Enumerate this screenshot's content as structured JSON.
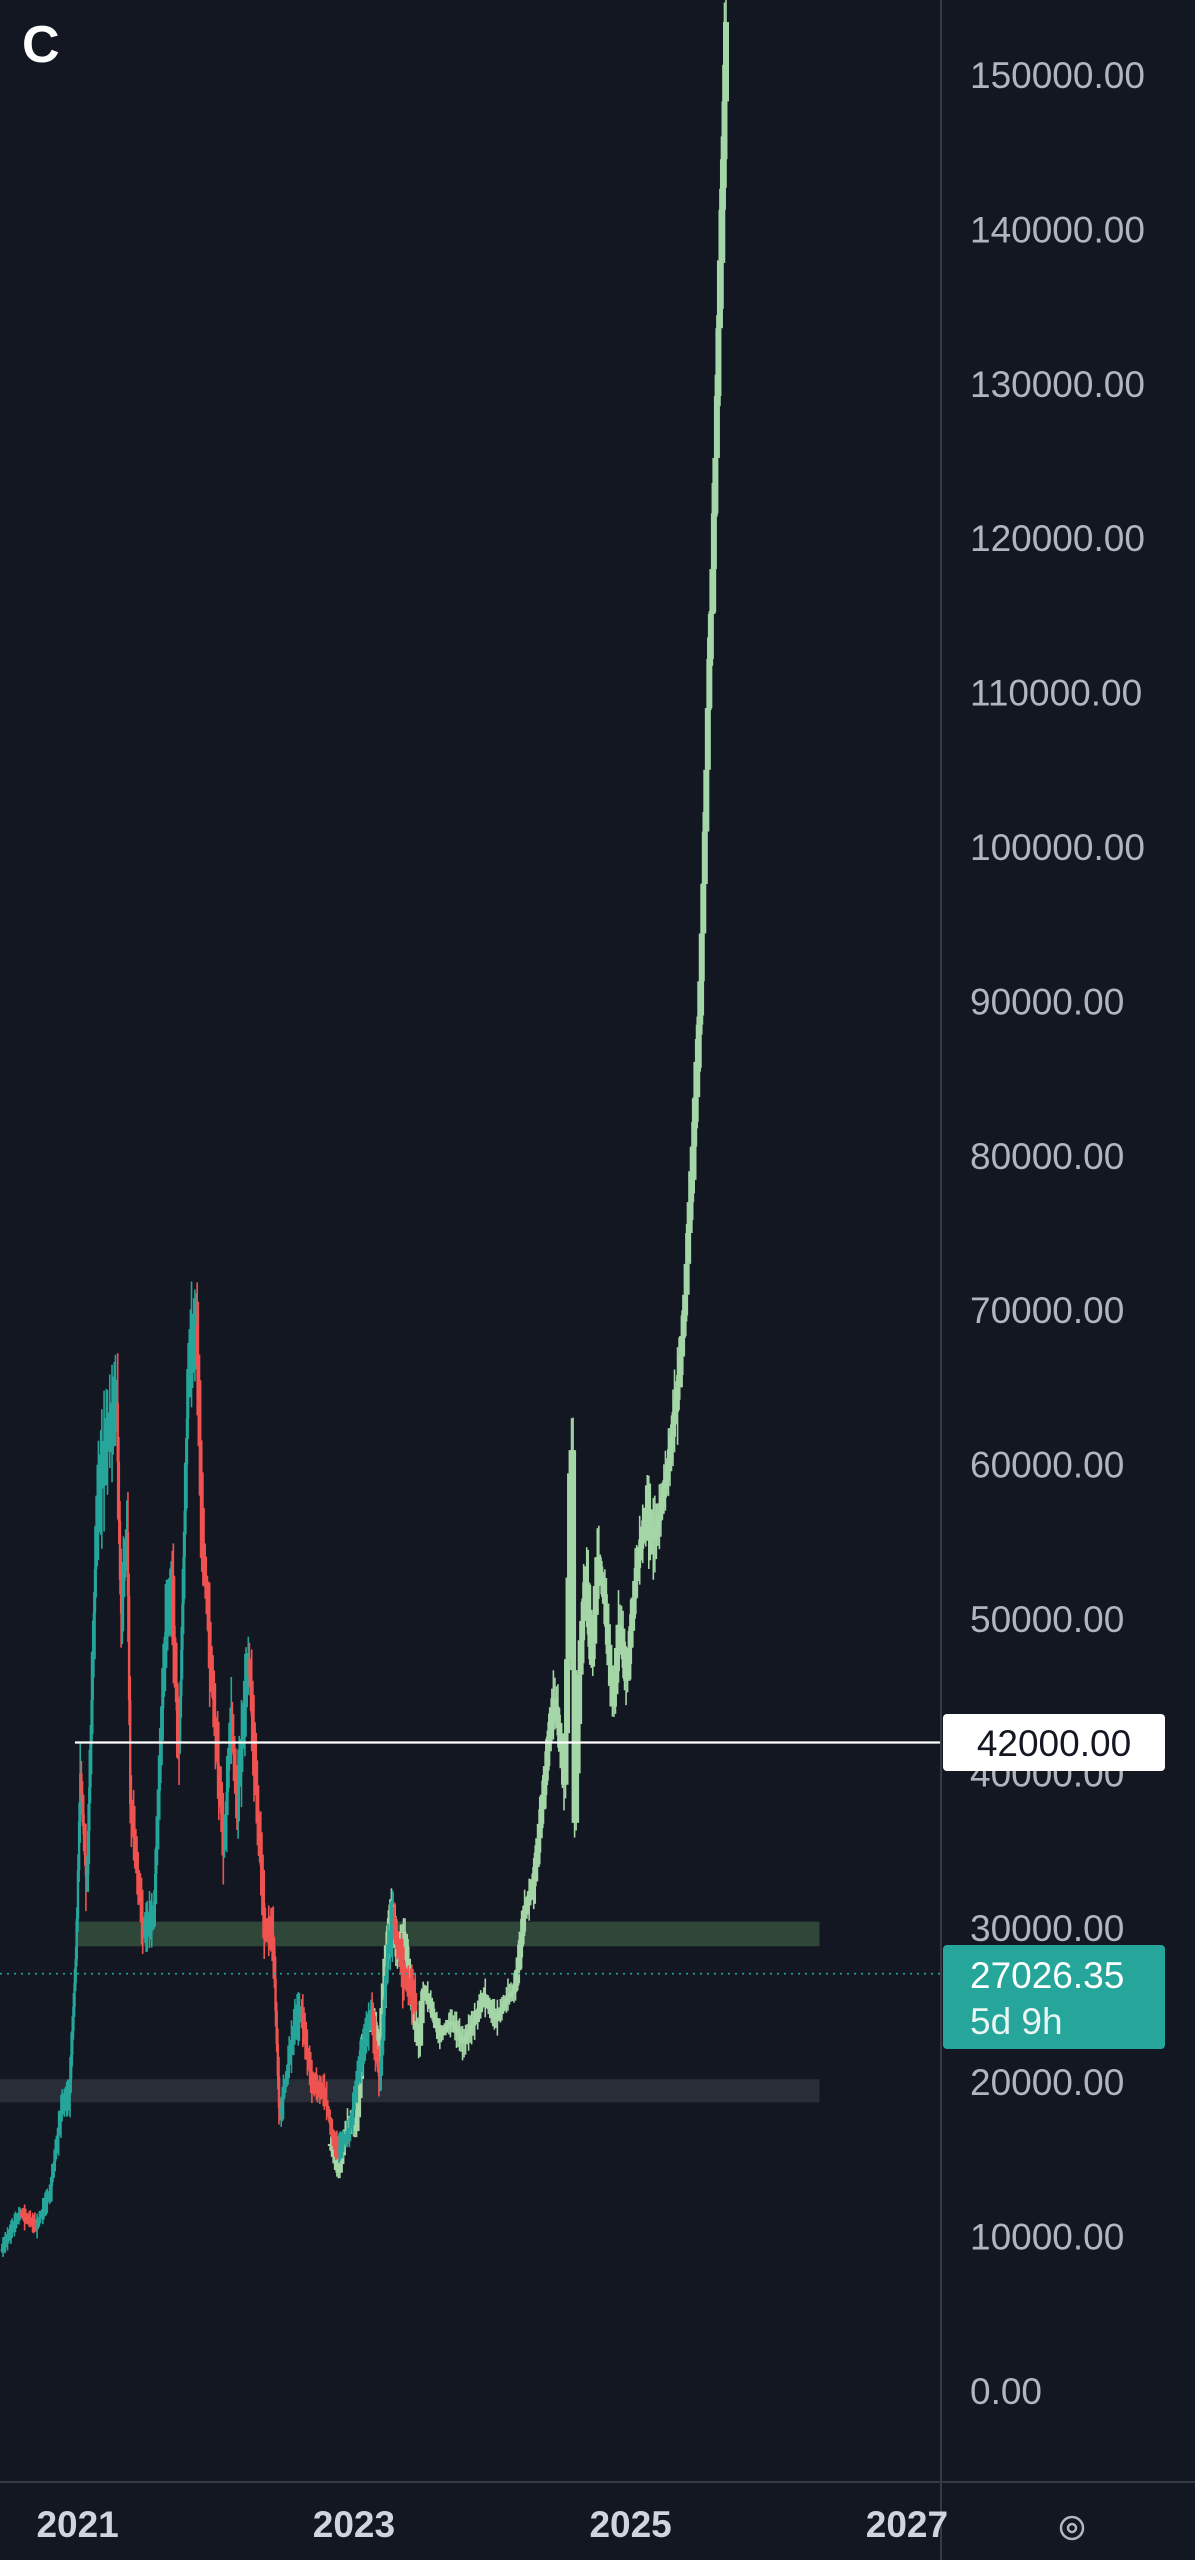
{
  "brand": {
    "logo_letter": "C"
  },
  "colors": {
    "background": "#131722",
    "axis_text": "#b2b5be",
    "candle_up": "#26a69a",
    "candle_down": "#ef5350",
    "projection": "#a5d6a7",
    "zone_resistance": "#2f4a3a",
    "zone_support": "#2a2e39",
    "level_line": "#ffffff",
    "price_badge": "#26a69a"
  },
  "icons": {
    "settings": "gear-icon"
  },
  "chart_data": {
    "type": "candlestick",
    "ylim": [
      -1000,
      156000
    ],
    "xlim": [
      "2020-06-10",
      "2027-04-01"
    ],
    "y_ticks": [
      "150000.00",
      "140000.00",
      "130000.00",
      "120000.00",
      "110000.00",
      "100000.00",
      "90000.00",
      "80000.00",
      "70000.00",
      "60000.00",
      "50000.00",
      "40000.00",
      "30000.00",
      "20000.00",
      "10000.00",
      "0.00"
    ],
    "x_ticks": [
      {
        "label": "2021",
        "date": "2021-01-01"
      },
      {
        "label": "2023",
        "date": "2023-01-01"
      },
      {
        "label": "2025",
        "date": "2025-01-01"
      },
      {
        "label": "2027",
        "date": "2027-01-01"
      }
    ],
    "horizontal_level": {
      "price": 42000,
      "label": "42000.00",
      "from_date": "2020-12-25"
    },
    "current_price": {
      "price": 27026.35,
      "label": "27026.35",
      "countdown": "5d 9h"
    },
    "zones": [
      {
        "name": "resistance",
        "from_date": "2020-12-25",
        "to_date": "2026-05-15",
        "low": 28800,
        "high": 30400
      },
      {
        "name": "support",
        "from_date": "2020-06-10",
        "to_date": "2026-05-15",
        "low": 18700,
        "high": 20200
      }
    ],
    "series": [
      {
        "name": "historical",
        "points": [
          [
            "2020-06-15",
            9200
          ],
          [
            "2020-08-01",
            11500
          ],
          [
            "2020-09-15",
            10700
          ],
          [
            "2020-10-20",
            12900
          ],
          [
            "2020-11-20",
            18500
          ],
          [
            "2020-12-10",
            19200
          ],
          [
            "2020-12-28",
            28500
          ],
          [
            "2021-01-08",
            40000
          ],
          [
            "2021-01-25",
            32500
          ],
          [
            "2021-02-20",
            57000
          ],
          [
            "2021-03-13",
            61000
          ],
          [
            "2021-04-14",
            64000
          ],
          [
            "2021-04-25",
            50000
          ],
          [
            "2021-05-12",
            56000
          ],
          [
            "2021-05-20",
            38000
          ],
          [
            "2021-06-22",
            30000
          ],
          [
            "2021-07-20",
            30500
          ],
          [
            "2021-08-20",
            49000
          ],
          [
            "2021-09-07",
            52000
          ],
          [
            "2021-09-25",
            41000
          ],
          [
            "2021-10-20",
            66000
          ],
          [
            "2021-11-10",
            69000
          ],
          [
            "2021-11-25",
            56000
          ],
          [
            "2021-12-20",
            46500
          ],
          [
            "2022-01-22",
            35000
          ],
          [
            "2022-02-10",
            44000
          ],
          [
            "2022-02-25",
            38000
          ],
          [
            "2022-03-28",
            47500
          ],
          [
            "2022-04-15",
            40000
          ],
          [
            "2022-05-10",
            30000
          ],
          [
            "2022-06-01",
            29500
          ],
          [
            "2022-06-18",
            17600
          ],
          [
            "2022-07-10",
            21000
          ],
          [
            "2022-07-30",
            24000
          ],
          [
            "2022-08-15",
            24400
          ],
          [
            "2022-09-10",
            20000
          ],
          [
            "2022-10-15",
            19200
          ],
          [
            "2022-11-09",
            16000
          ],
          [
            "2022-11-21",
            15600
          ],
          [
            "2022-12-20",
            16800
          ],
          [
            "2023-01-14",
            21000
          ],
          [
            "2023-02-15",
            24500
          ],
          [
            "2023-03-10",
            20000
          ],
          [
            "2023-03-30",
            28500
          ],
          [
            "2023-04-14",
            30500
          ],
          [
            "2023-05-10",
            27000
          ],
          [
            "2023-06-15",
            25000
          ]
        ]
      },
      {
        "name": "projection",
        "points": [
          [
            "2022-11-01",
            16000
          ],
          [
            "2022-11-20",
            14000
          ],
          [
            "2022-12-15",
            17500
          ],
          [
            "2023-01-05",
            16800
          ],
          [
            "2023-01-25",
            23000
          ],
          [
            "2023-02-20",
            24000
          ],
          [
            "2023-03-10",
            22000
          ],
          [
            "2023-03-25",
            28000
          ],
          [
            "2023-04-10",
            31500
          ],
          [
            "2023-04-25",
            28000
          ],
          [
            "2023-05-10",
            30000
          ],
          [
            "2023-05-25",
            27000
          ],
          [
            "2023-06-10",
            24000
          ],
          [
            "2023-06-20",
            22000
          ],
          [
            "2023-07-01",
            26000
          ],
          [
            "2023-07-20",
            25000
          ],
          [
            "2023-08-15",
            23000
          ],
          [
            "2023-09-15",
            24000
          ],
          [
            "2023-10-15",
            22500
          ],
          [
            "2023-11-15",
            24000
          ],
          [
            "2023-12-10",
            25500
          ],
          [
            "2024-01-10",
            24000
          ],
          [
            "2024-02-10",
            25500
          ],
          [
            "2024-03-01",
            26000
          ],
          [
            "2024-03-25",
            31000
          ],
          [
            "2024-04-20",
            33000
          ],
          [
            "2024-05-20",
            40000
          ],
          [
            "2024-06-10",
            45000
          ],
          [
            "2024-06-25",
            43000
          ],
          [
            "2024-07-10",
            39000
          ],
          [
            "2024-07-20",
            51000
          ],
          [
            "2024-07-28",
            64500
          ],
          [
            "2024-08-05",
            36000
          ],
          [
            "2024-08-20",
            48000
          ],
          [
            "2024-09-05",
            53000
          ],
          [
            "2024-09-20",
            47000
          ],
          [
            "2024-10-05",
            54000
          ],
          [
            "2024-10-25",
            51000
          ],
          [
            "2024-11-15",
            44000
          ],
          [
            "2024-12-01",
            50000
          ],
          [
            "2024-12-20",
            46000
          ],
          [
            "2025-01-15",
            53000
          ],
          [
            "2025-02-10",
            57000
          ],
          [
            "2025-03-01",
            55000
          ],
          [
            "2025-03-20",
            57000
          ],
          [
            "2025-04-10",
            60000
          ],
          [
            "2025-04-25",
            63000
          ],
          [
            "2025-05-10",
            66000
          ],
          [
            "2025-05-25",
            71000
          ],
          [
            "2025-06-10",
            79000
          ],
          [
            "2025-06-25",
            85000
          ],
          [
            "2025-07-05",
            92000
          ],
          [
            "2025-07-15",
            100000
          ],
          [
            "2025-07-25",
            110000
          ],
          [
            "2025-08-05",
            118000
          ],
          [
            "2025-08-15",
            127000
          ],
          [
            "2025-08-25",
            138000
          ],
          [
            "2025-09-05",
            147000
          ],
          [
            "2025-09-12",
            156000
          ]
        ]
      }
    ]
  }
}
